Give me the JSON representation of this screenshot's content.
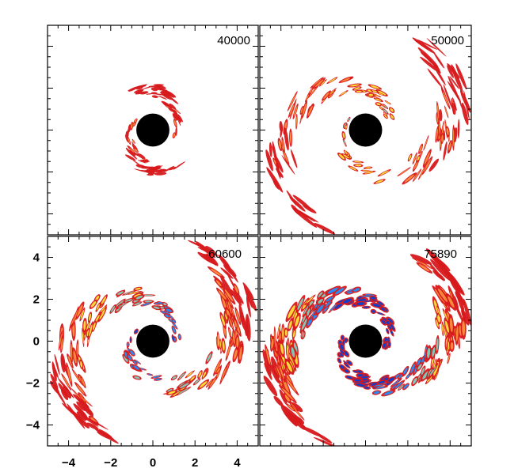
{
  "chart_data": {
    "type": "heatmap",
    "layout": "2x2 panels sharing axes",
    "xlim": [
      -5,
      5
    ],
    "ylim": [
      -5,
      5
    ],
    "x_ticks": [
      -4,
      -2,
      0,
      2,
      4
    ],
    "y_ticks": [
      -4,
      -2,
      0,
      2,
      4
    ],
    "x_tick_labels": [
      "−4",
      "−2",
      "0",
      "2",
      "4"
    ],
    "y_tick_labels": [
      "−4",
      "−2",
      "0",
      "2",
      "4"
    ],
    "central_object": {
      "x": 0,
      "y": 0,
      "radius": 0.75,
      "color": "#000000"
    },
    "colors": {
      "low": "#d7191c",
      "mid_low": "#fd8d3c",
      "mid": "#fee33a",
      "mid_high": "#7fcdbb",
      "high": "#1e90ff",
      "highest": "#0b3fcf"
    },
    "panels": [
      {
        "label": "40000",
        "position": "top-left",
        "arms": 2,
        "extent": 2.2,
        "intensity": 0.15
      },
      {
        "label": "50000",
        "position": "top-right",
        "arms": 2,
        "extent": 5.2,
        "intensity": 0.45
      },
      {
        "label": "60600",
        "position": "bottom-left",
        "arms": 2,
        "extent": 5.2,
        "intensity": 0.7
      },
      {
        "label": "75890",
        "position": "bottom-right",
        "arms": 2,
        "extent": 5.2,
        "intensity": 1.0
      }
    ]
  }
}
